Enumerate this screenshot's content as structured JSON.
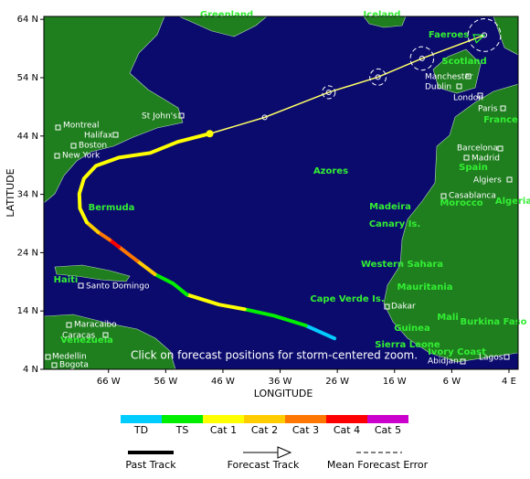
{
  "map": {
    "xlabel": "LONGITUDE",
    "ylabel": "LATITUDE",
    "xlim": [
      -77.3,
      5.6
    ],
    "ylim": [
      4.0,
      64.5
    ],
    "xticks": [
      {
        "value": -66,
        "label": "66 W"
      },
      {
        "value": -56,
        "label": "56 W"
      },
      {
        "value": -46,
        "label": "46 W"
      },
      {
        "value": -36,
        "label": "36 W"
      },
      {
        "value": -26,
        "label": "26 W"
      },
      {
        "value": -16,
        "label": "16 W"
      },
      {
        "value": -6,
        "label": "6 W"
      },
      {
        "value": 4,
        "label": "4 E"
      }
    ],
    "yticks": [
      {
        "value": 64,
        "label": "64 N"
      },
      {
        "value": 54,
        "label": "54 N"
      },
      {
        "value": 44,
        "label": "44 N"
      },
      {
        "value": 34,
        "label": "34 N"
      },
      {
        "value": 24,
        "label": "24 N"
      },
      {
        "value": 14,
        "label": "14 N"
      },
      {
        "value": 4,
        "label": "4 N"
      }
    ],
    "regions": [
      "Greenland",
      "Iceland",
      "Faeroes",
      "Scotland",
      "France",
      "Spain",
      "Morocco",
      "Algeria",
      "Azores",
      "Bermuda",
      "Madeira",
      "Canary Is.",
      "Western Sahara",
      "Mauritania",
      "Mali",
      "Burkina Faso",
      "Cape Verde Is.",
      "Guinea",
      "Sierra Leone",
      "Ivory Coast",
      "Haiti",
      "Venezuela"
    ],
    "cities": [
      "Montreal",
      "Halifax",
      "Boston",
      "New York",
      "St John's",
      "Manchester",
      "Dublin",
      "London",
      "Paris",
      "Barcelona",
      "Madrid",
      "Algiers",
      "Casablanca",
      "Dakar",
      "Santo Domingo",
      "Maracaibo",
      "Caracas",
      "Medellin",
      "Bogota",
      "Abidjan",
      "Lagos"
    ],
    "track": [
      {
        "category": "TD",
        "lon": [
          -26.5,
          -31.5
        ],
        "lat": [
          9.3,
          11.5
        ]
      },
      {
        "category": "TS",
        "lon": [
          -31.5,
          -37.1,
          -42.2
        ],
        "lat": [
          11.5,
          13.2,
          14.3
        ]
      },
      {
        "category": "Cat 1",
        "lon": [
          -42.2,
          -46.7,
          -52.3
        ],
        "lat": [
          14.3,
          15.1,
          16.8
        ]
      },
      {
        "category": "TS",
        "lon": [
          -52.3,
          -54.7,
          -57.9
        ],
        "lat": [
          16.8,
          18.7,
          20.3
        ]
      },
      {
        "category": "Cat 2",
        "lon": [
          -57.9,
          -61.0
        ],
        "lat": [
          20.3,
          22.6
        ]
      },
      {
        "category": "Cat 3",
        "lon": [
          -61.0,
          -64.2
        ],
        "lat": [
          22.6,
          25.0
        ]
      },
      {
        "category": "Cat 4",
        "lon": [
          -64.2,
          -65.8
        ],
        "lat": [
          25.0,
          26.2
        ]
      },
      {
        "category": "Cat 3",
        "lon": [
          -65.8,
          -67.8
        ],
        "lat": [
          26.2,
          27.5
        ]
      },
      {
        "category": "Cat 2",
        "lon": [
          -67.8,
          -69.8
        ],
        "lat": [
          27.5,
          29.2
        ]
      },
      {
        "category": "Cat 1",
        "lon": [
          -69.8,
          -71.0,
          -71.1,
          -70.3,
          -68.2,
          -64.2,
          -58.7,
          -53.9,
          -48.3
        ],
        "lat": [
          29.2,
          31.6,
          34.1,
          36.7,
          38.9,
          40.3,
          41.1,
          43.0,
          44.4
        ]
      }
    ],
    "forecast": {
      "lon": [
        -48.3,
        -38.7,
        -27.5,
        -18.9,
        -11.2,
        -0.3
      ],
      "lat": [
        44.4,
        47.2,
        51.5,
        54.1,
        57.3,
        61.3
      ],
      "error_radius": [
        null,
        null,
        1.1,
        1.4,
        2.0,
        2.8
      ]
    },
    "note": "Click on forecast positions for storm-centered zoom."
  },
  "legend": {
    "categories": [
      {
        "name": "TD",
        "color": "#00ccff"
      },
      {
        "name": "TS",
        "color": "#00ee00"
      },
      {
        "name": "Cat 1",
        "color": "#ffff00"
      },
      {
        "name": "Cat 2",
        "color": "#ffcc00"
      },
      {
        "name": "Cat 3",
        "color": "#ff7700"
      },
      {
        "name": "Cat 4",
        "color": "#ff0000"
      },
      {
        "name": "Cat 5",
        "color": "#cc00cc"
      }
    ],
    "past_track": "Past Track",
    "forecast_track": "Forecast Track",
    "error": "Mean Forecast Error"
  }
}
